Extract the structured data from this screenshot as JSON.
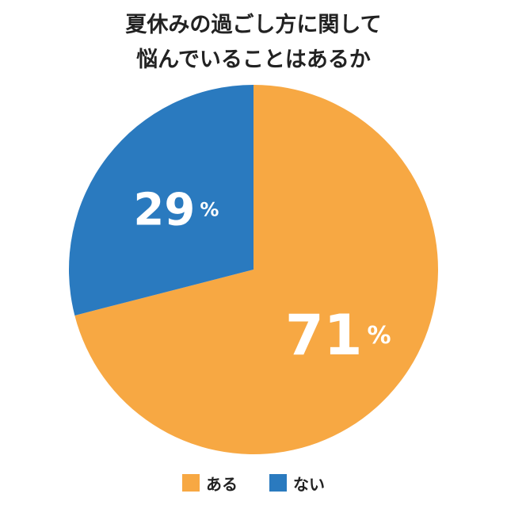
{
  "chart_data": {
    "type": "pie",
    "title": [
      "夏休みの過ごし方に関して",
      "悩んでいることはあるか"
    ],
    "slices": [
      {
        "label": "ある",
        "value": 71,
        "value_text": "71",
        "color": "#F7A843"
      },
      {
        "label": "ない",
        "value": 29,
        "value_text": "29",
        "color": "#2A7ABF"
      }
    ],
    "unit": "%",
    "start_angle": "12 o'clock",
    "direction": "clockwise",
    "legend_position": "bottom"
  }
}
